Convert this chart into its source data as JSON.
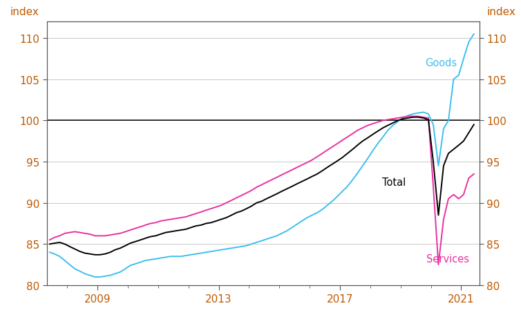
{
  "ylabel_left": "index",
  "ylabel_right": "index",
  "ylim": [
    80,
    112
  ],
  "yticks": [
    80,
    85,
    90,
    95,
    100,
    105,
    110
  ],
  "xlim_start": 2007.33,
  "xlim_end": 2021.6,
  "xtick_labels": [
    "2009",
    "2013",
    "2017",
    "2021"
  ],
  "xtick_positions": [
    2009,
    2013,
    2017,
    2021
  ],
  "minor_xticks": [
    2008,
    2010,
    2011,
    2012,
    2014,
    2015,
    2016,
    2018,
    2019,
    2020
  ],
  "hline_y": 100,
  "hline_color": "#222222",
  "grid_color": "#c8c8c8",
  "background_color": "#ffffff",
  "label_color_goods": "#3dbfef",
  "label_color_total": "#000000",
  "label_color_services": "#e830a0",
  "axis_color": "#c05a00",
  "spine_color": "#555555",
  "goods_label": "Goods",
  "total_label": "Total",
  "services_label": "Services",
  "total_x": [
    2007.42,
    2007.58,
    2007.75,
    2007.92,
    2008.08,
    2008.25,
    2008.42,
    2008.58,
    2008.75,
    2008.92,
    2009.08,
    2009.25,
    2009.42,
    2009.58,
    2009.75,
    2009.92,
    2010.08,
    2010.25,
    2010.42,
    2010.58,
    2010.75,
    2010.92,
    2011.08,
    2011.25,
    2011.42,
    2011.58,
    2011.75,
    2011.92,
    2012.08,
    2012.25,
    2012.42,
    2012.58,
    2012.75,
    2012.92,
    2013.08,
    2013.25,
    2013.42,
    2013.58,
    2013.75,
    2013.92,
    2014.08,
    2014.25,
    2014.42,
    2014.58,
    2014.75,
    2014.92,
    2015.08,
    2015.25,
    2015.42,
    2015.58,
    2015.75,
    2015.92,
    2016.08,
    2016.25,
    2016.42,
    2016.58,
    2016.75,
    2016.92,
    2017.08,
    2017.25,
    2017.42,
    2017.58,
    2017.75,
    2017.92,
    2018.08,
    2018.25,
    2018.42,
    2018.58,
    2018.75,
    2018.92,
    2019.08,
    2019.25,
    2019.42,
    2019.58,
    2019.75,
    2019.92,
    2020.08,
    2020.25,
    2020.42,
    2020.58,
    2020.75,
    2020.92,
    2021.08,
    2021.25,
    2021.42
  ],
  "total_y": [
    85.0,
    85.1,
    85.2,
    85.0,
    84.7,
    84.4,
    84.1,
    83.9,
    83.8,
    83.7,
    83.7,
    83.8,
    84.0,
    84.3,
    84.5,
    84.8,
    85.1,
    85.3,
    85.5,
    85.7,
    85.9,
    86.0,
    86.2,
    86.4,
    86.5,
    86.6,
    86.7,
    86.8,
    87.0,
    87.2,
    87.3,
    87.5,
    87.6,
    87.8,
    88.0,
    88.2,
    88.5,
    88.8,
    89.0,
    89.3,
    89.6,
    90.0,
    90.2,
    90.5,
    90.8,
    91.1,
    91.4,
    91.7,
    92.0,
    92.3,
    92.6,
    92.9,
    93.2,
    93.5,
    93.9,
    94.3,
    94.7,
    95.1,
    95.5,
    96.0,
    96.5,
    97.0,
    97.5,
    97.9,
    98.3,
    98.7,
    99.1,
    99.4,
    99.7,
    100.0,
    100.2,
    100.3,
    100.4,
    100.4,
    100.3,
    100.1,
    95.0,
    88.5,
    94.5,
    96.0,
    96.5,
    97.0,
    97.5,
    98.5,
    99.5
  ],
  "goods_x": [
    2007.42,
    2007.58,
    2007.75,
    2007.92,
    2008.08,
    2008.25,
    2008.42,
    2008.58,
    2008.75,
    2008.92,
    2009.08,
    2009.25,
    2009.42,
    2009.58,
    2009.75,
    2009.92,
    2010.08,
    2010.25,
    2010.42,
    2010.58,
    2010.75,
    2010.92,
    2011.08,
    2011.25,
    2011.42,
    2011.58,
    2011.75,
    2011.92,
    2012.08,
    2012.25,
    2012.42,
    2012.58,
    2012.75,
    2012.92,
    2013.08,
    2013.25,
    2013.42,
    2013.58,
    2013.75,
    2013.92,
    2014.08,
    2014.25,
    2014.42,
    2014.58,
    2014.75,
    2014.92,
    2015.08,
    2015.25,
    2015.42,
    2015.58,
    2015.75,
    2015.92,
    2016.08,
    2016.25,
    2016.42,
    2016.58,
    2016.75,
    2016.92,
    2017.08,
    2017.25,
    2017.42,
    2017.58,
    2017.75,
    2017.92,
    2018.08,
    2018.25,
    2018.42,
    2018.58,
    2018.75,
    2018.92,
    2019.08,
    2019.25,
    2019.42,
    2019.58,
    2019.75,
    2019.92,
    2020.08,
    2020.25,
    2020.42,
    2020.58,
    2020.75,
    2020.92,
    2021.08,
    2021.25,
    2021.42
  ],
  "goods_y": [
    84.0,
    83.8,
    83.5,
    83.0,
    82.5,
    82.0,
    81.7,
    81.4,
    81.2,
    81.0,
    81.0,
    81.1,
    81.2,
    81.4,
    81.6,
    82.0,
    82.4,
    82.6,
    82.8,
    83.0,
    83.1,
    83.2,
    83.3,
    83.4,
    83.5,
    83.5,
    83.5,
    83.6,
    83.7,
    83.8,
    83.9,
    84.0,
    84.1,
    84.2,
    84.3,
    84.4,
    84.5,
    84.6,
    84.7,
    84.8,
    85.0,
    85.2,
    85.4,
    85.6,
    85.8,
    86.0,
    86.3,
    86.6,
    87.0,
    87.4,
    87.8,
    88.2,
    88.5,
    88.8,
    89.2,
    89.7,
    90.2,
    90.8,
    91.4,
    92.0,
    92.8,
    93.6,
    94.5,
    95.4,
    96.3,
    97.2,
    98.0,
    98.8,
    99.4,
    99.9,
    100.3,
    100.6,
    100.8,
    100.9,
    101.0,
    100.8,
    99.5,
    94.5,
    99.0,
    100.0,
    105.0,
    105.5,
    107.5,
    109.5,
    110.5
  ],
  "services_x": [
    2007.42,
    2007.58,
    2007.75,
    2007.92,
    2008.08,
    2008.25,
    2008.42,
    2008.58,
    2008.75,
    2008.92,
    2009.08,
    2009.25,
    2009.42,
    2009.58,
    2009.75,
    2009.92,
    2010.08,
    2010.25,
    2010.42,
    2010.58,
    2010.75,
    2010.92,
    2011.08,
    2011.25,
    2011.42,
    2011.58,
    2011.75,
    2011.92,
    2012.08,
    2012.25,
    2012.42,
    2012.58,
    2012.75,
    2012.92,
    2013.08,
    2013.25,
    2013.42,
    2013.58,
    2013.75,
    2013.92,
    2014.08,
    2014.25,
    2014.42,
    2014.58,
    2014.75,
    2014.92,
    2015.08,
    2015.25,
    2015.42,
    2015.58,
    2015.75,
    2015.92,
    2016.08,
    2016.25,
    2016.42,
    2016.58,
    2016.75,
    2016.92,
    2017.08,
    2017.25,
    2017.42,
    2017.58,
    2017.75,
    2017.92,
    2018.08,
    2018.25,
    2018.42,
    2018.58,
    2018.75,
    2018.92,
    2019.08,
    2019.25,
    2019.42,
    2019.58,
    2019.75,
    2019.92,
    2020.08,
    2020.25,
    2020.42,
    2020.58,
    2020.75,
    2020.92,
    2021.08,
    2021.25,
    2021.42
  ],
  "services_y": [
    85.5,
    85.8,
    86.0,
    86.3,
    86.4,
    86.5,
    86.4,
    86.3,
    86.2,
    86.0,
    86.0,
    86.0,
    86.1,
    86.2,
    86.3,
    86.5,
    86.7,
    86.9,
    87.1,
    87.3,
    87.5,
    87.6,
    87.8,
    87.9,
    88.0,
    88.1,
    88.2,
    88.3,
    88.5,
    88.7,
    88.9,
    89.1,
    89.3,
    89.5,
    89.7,
    90.0,
    90.3,
    90.6,
    90.9,
    91.2,
    91.5,
    91.9,
    92.2,
    92.5,
    92.8,
    93.1,
    93.4,
    93.7,
    94.0,
    94.3,
    94.6,
    94.9,
    95.2,
    95.6,
    96.0,
    96.4,
    96.8,
    97.2,
    97.6,
    98.0,
    98.4,
    98.8,
    99.1,
    99.4,
    99.6,
    99.8,
    100.0,
    100.1,
    100.2,
    100.3,
    100.4,
    100.5,
    100.5,
    100.5,
    100.4,
    100.3,
    92.0,
    82.5,
    88.0,
    90.5,
    91.0,
    90.5,
    91.0,
    93.0,
    93.5
  ]
}
